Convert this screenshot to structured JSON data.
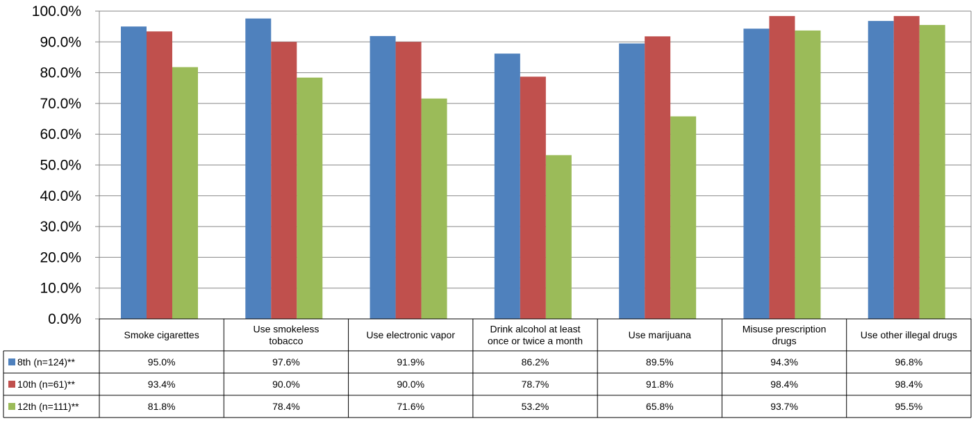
{
  "chart_data": {
    "type": "bar",
    "categories": [
      "Smoke cigarettes",
      "Use smokeless tobacco",
      "Use electronic vapor",
      "Drink alcohol at least once or twice a month",
      "Use marijuana",
      "Misuse prescription drugs",
      "Use other illegal drugs"
    ],
    "category_lines": [
      [
        "Smoke cigarettes"
      ],
      [
        "Use smokeless",
        "tobacco"
      ],
      [
        "Use electronic vapor"
      ],
      [
        "Drink alcohol at least",
        "once or twice a month"
      ],
      [
        "Use marijuana"
      ],
      [
        "Misuse prescription",
        "drugs"
      ],
      [
        "Use other illegal drugs"
      ]
    ],
    "series": [
      {
        "name": "8th (n=124)**",
        "color": "#4F81BD",
        "values": [
          95.0,
          97.6,
          91.9,
          86.2,
          89.5,
          94.3,
          96.8
        ],
        "labels": [
          "95.0%",
          "97.6%",
          "91.9%",
          "86.2%",
          "89.5%",
          "94.3%",
          "96.8%"
        ]
      },
      {
        "name": "10th (n=61)**",
        "color": "#C0504D",
        "values": [
          93.4,
          90.0,
          90.0,
          78.7,
          91.8,
          98.4,
          98.4
        ],
        "labels": [
          "93.4%",
          "90.0%",
          "90.0%",
          "78.7%",
          "91.8%",
          "98.4%",
          "98.4%"
        ]
      },
      {
        "name": "12th (n=111)**",
        "color": "#9BBB59",
        "values": [
          81.8,
          78.4,
          71.6,
          53.2,
          65.8,
          93.7,
          95.5
        ],
        "labels": [
          "81.8%",
          "78.4%",
          "71.6%",
          "53.2%",
          "65.8%",
          "93.7%",
          "95.5%"
        ]
      }
    ],
    "yticks": [
      "0.0%",
      "10.0%",
      "20.0%",
      "30.0%",
      "40.0%",
      "50.0%",
      "60.0%",
      "70.0%",
      "80.0%",
      "90.0%",
      "100.0%"
    ],
    "ylim": [
      0,
      100
    ],
    "grid": true,
    "legend": "data-table-left",
    "title": "",
    "xlabel": "",
    "ylabel": ""
  }
}
